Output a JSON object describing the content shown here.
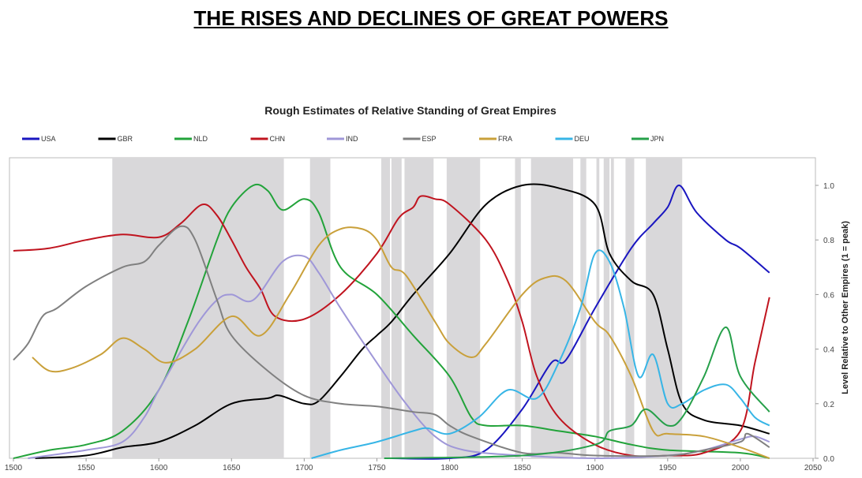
{
  "chart_data": {
    "type": "line",
    "title": "THE RISES AND DECLINES OF GREAT POWERS",
    "subtitle": "Rough Estimates of Relative Standing of Great Empires",
    "xlabel": "",
    "ylabel": "Level Relative to Other Empires (1 = peak)",
    "xlim": [
      1500,
      2050
    ],
    "ylim": [
      0,
      1.0
    ],
    "xticks": [
      "1500",
      "1550",
      "1600",
      "1650",
      "1700",
      "1750",
      "1800",
      "1850",
      "1900",
      "1950",
      "2000",
      "2050"
    ],
    "yticks": [
      "0.0",
      "0.2",
      "0.4",
      "0.6",
      "0.8",
      "1.0"
    ],
    "legend_position": "top",
    "shaded_periods": [
      [
        1568,
        1686
      ],
      [
        1704,
        1718
      ],
      [
        1753,
        1759
      ],
      [
        1760,
        1767
      ],
      [
        1769,
        1789
      ],
      [
        1798,
        1821
      ],
      [
        1845,
        1849
      ],
      [
        1856,
        1885
      ],
      [
        1890,
        1894
      ],
      [
        1901,
        1903
      ],
      [
        1906,
        1910
      ],
      [
        1911,
        1913
      ],
      [
        1921,
        1927
      ],
      [
        1935,
        1960
      ]
    ],
    "series": [
      {
        "name": "USA",
        "color": "#1a16c0",
        "points": [
          [
            1760,
            0
          ],
          [
            1800,
            0.0
          ],
          [
            1825,
            0.03
          ],
          [
            1850,
            0.18
          ],
          [
            1870,
            0.35
          ],
          [
            1880,
            0.36
          ],
          [
            1900,
            0.55
          ],
          [
            1925,
            0.77
          ],
          [
            1940,
            0.86
          ],
          [
            1950,
            0.92
          ],
          [
            1958,
            1.0
          ],
          [
            1970,
            0.9
          ],
          [
            1990,
            0.8
          ],
          [
            2000,
            0.77
          ],
          [
            2020,
            0.68
          ]
        ]
      },
      {
        "name": "GBR",
        "color": "#000000",
        "points": [
          [
            1515,
            0
          ],
          [
            1550,
            0.01
          ],
          [
            1575,
            0.04
          ],
          [
            1600,
            0.06
          ],
          [
            1625,
            0.12
          ],
          [
            1650,
            0.2
          ],
          [
            1675,
            0.22
          ],
          [
            1683,
            0.23
          ],
          [
            1700,
            0.2
          ],
          [
            1710,
            0.21
          ],
          [
            1725,
            0.3
          ],
          [
            1740,
            0.4
          ],
          [
            1750,
            0.45
          ],
          [
            1760,
            0.5
          ],
          [
            1775,
            0.6
          ],
          [
            1800,
            0.75
          ],
          [
            1825,
            0.93
          ],
          [
            1850,
            1.0
          ],
          [
            1875,
            0.99
          ],
          [
            1900,
            0.93
          ],
          [
            1910,
            0.75
          ],
          [
            1925,
            0.65
          ],
          [
            1940,
            0.6
          ],
          [
            1950,
            0.4
          ],
          [
            1960,
            0.2
          ],
          [
            1975,
            0.14
          ],
          [
            2000,
            0.12
          ],
          [
            2020,
            0.09
          ]
        ]
      },
      {
        "name": "NLD",
        "color": "#22a33a",
        "points": [
          [
            1500,
            0
          ],
          [
            1525,
            0.03
          ],
          [
            1550,
            0.05
          ],
          [
            1575,
            0.1
          ],
          [
            1600,
            0.25
          ],
          [
            1620,
            0.5
          ],
          [
            1640,
            0.8
          ],
          [
            1650,
            0.92
          ],
          [
            1665,
            1.0
          ],
          [
            1675,
            0.98
          ],
          [
            1685,
            0.91
          ],
          [
            1700,
            0.95
          ],
          [
            1710,
            0.9
          ],
          [
            1725,
            0.7
          ],
          [
            1750,
            0.6
          ],
          [
            1775,
            0.45
          ],
          [
            1800,
            0.3
          ],
          [
            1815,
            0.15
          ],
          [
            1825,
            0.12
          ],
          [
            1850,
            0.12
          ],
          [
            1875,
            0.1
          ],
          [
            1900,
            0.08
          ],
          [
            1925,
            0.05
          ],
          [
            1950,
            0.03
          ],
          [
            2000,
            0.02
          ],
          [
            2020,
            0.0
          ]
        ]
      },
      {
        "name": "CHN",
        "color": "#c0141f",
        "points": [
          [
            1500,
            0.76
          ],
          [
            1525,
            0.77
          ],
          [
            1550,
            0.8
          ],
          [
            1575,
            0.82
          ],
          [
            1600,
            0.81
          ],
          [
            1615,
            0.86
          ],
          [
            1630,
            0.93
          ],
          [
            1640,
            0.89
          ],
          [
            1650,
            0.8
          ],
          [
            1660,
            0.7
          ],
          [
            1670,
            0.62
          ],
          [
            1680,
            0.52
          ],
          [
            1700,
            0.51
          ],
          [
            1725,
            0.6
          ],
          [
            1750,
            0.75
          ],
          [
            1765,
            0.88
          ],
          [
            1775,
            0.92
          ],
          [
            1780,
            0.96
          ],
          [
            1790,
            0.95
          ],
          [
            1800,
            0.93
          ],
          [
            1825,
            0.8
          ],
          [
            1840,
            0.65
          ],
          [
            1850,
            0.5
          ],
          [
            1860,
            0.3
          ],
          [
            1875,
            0.15
          ],
          [
            1900,
            0.05
          ],
          [
            1925,
            0.01
          ],
          [
            1950,
            0.01
          ],
          [
            1975,
            0.02
          ],
          [
            2000,
            0.1
          ],
          [
            2010,
            0.35
          ],
          [
            2020,
            0.59
          ]
        ]
      },
      {
        "name": "IND",
        "color": "#9f97d8",
        "points": [
          [
            1510,
            0
          ],
          [
            1550,
            0.03
          ],
          [
            1575,
            0.06
          ],
          [
            1590,
            0.15
          ],
          [
            1600,
            0.25
          ],
          [
            1625,
            0.48
          ],
          [
            1640,
            0.58
          ],
          [
            1650,
            0.6
          ],
          [
            1665,
            0.58
          ],
          [
            1685,
            0.72
          ],
          [
            1700,
            0.74
          ],
          [
            1710,
            0.68
          ],
          [
            1725,
            0.55
          ],
          [
            1750,
            0.35
          ],
          [
            1770,
            0.2
          ],
          [
            1790,
            0.08
          ],
          [
            1810,
            0.03
          ],
          [
            1850,
            0.01
          ],
          [
            1900,
            0.0
          ],
          [
            1950,
            0.01
          ],
          [
            1975,
            0.03
          ],
          [
            2000,
            0.07
          ],
          [
            2010,
            0.08
          ],
          [
            2020,
            0.06
          ]
        ]
      },
      {
        "name": "ESP",
        "color": "#808080",
        "points": [
          [
            1500,
            0.36
          ],
          [
            1510,
            0.42
          ],
          [
            1520,
            0.52
          ],
          [
            1530,
            0.55
          ],
          [
            1550,
            0.63
          ],
          [
            1575,
            0.7
          ],
          [
            1590,
            0.72
          ],
          [
            1600,
            0.78
          ],
          [
            1615,
            0.85
          ],
          [
            1625,
            0.8
          ],
          [
            1640,
            0.58
          ],
          [
            1650,
            0.45
          ],
          [
            1675,
            0.32
          ],
          [
            1700,
            0.23
          ],
          [
            1725,
            0.2
          ],
          [
            1750,
            0.19
          ],
          [
            1775,
            0.17
          ],
          [
            1790,
            0.16
          ],
          [
            1800,
            0.12
          ],
          [
            1815,
            0.08
          ],
          [
            1850,
            0.02
          ],
          [
            1875,
            0.02
          ],
          [
            1900,
            0.01
          ],
          [
            1950,
            0.01
          ],
          [
            1975,
            0.03
          ],
          [
            2000,
            0.06
          ],
          [
            2005,
            0.09
          ],
          [
            2020,
            0.04
          ]
        ]
      },
      {
        "name": "FRA",
        "color": "#c9a03a",
        "points": [
          [
            1513,
            0.37
          ],
          [
            1525,
            0.32
          ],
          [
            1540,
            0.33
          ],
          [
            1560,
            0.38
          ],
          [
            1575,
            0.44
          ],
          [
            1590,
            0.4
          ],
          [
            1605,
            0.35
          ],
          [
            1625,
            0.4
          ],
          [
            1650,
            0.52
          ],
          [
            1670,
            0.45
          ],
          [
            1690,
            0.6
          ],
          [
            1710,
            0.78
          ],
          [
            1725,
            0.84
          ],
          [
            1740,
            0.84
          ],
          [
            1750,
            0.8
          ],
          [
            1760,
            0.7
          ],
          [
            1770,
            0.67
          ],
          [
            1790,
            0.5
          ],
          [
            1800,
            0.42
          ],
          [
            1815,
            0.37
          ],
          [
            1825,
            0.42
          ],
          [
            1850,
            0.6
          ],
          [
            1865,
            0.66
          ],
          [
            1880,
            0.65
          ],
          [
            1900,
            0.5
          ],
          [
            1910,
            0.45
          ],
          [
            1925,
            0.3
          ],
          [
            1940,
            0.1
          ],
          [
            1950,
            0.09
          ],
          [
            1975,
            0.08
          ],
          [
            2000,
            0.04
          ],
          [
            2020,
            0.0
          ]
        ]
      },
      {
        "name": "DEU",
        "color": "#37b5e6",
        "points": [
          [
            1705,
            0
          ],
          [
            1725,
            0.03
          ],
          [
            1750,
            0.06
          ],
          [
            1775,
            0.1
          ],
          [
            1785,
            0.11
          ],
          [
            1800,
            0.09
          ],
          [
            1820,
            0.15
          ],
          [
            1840,
            0.25
          ],
          [
            1860,
            0.22
          ],
          [
            1875,
            0.35
          ],
          [
            1890,
            0.55
          ],
          [
            1900,
            0.75
          ],
          [
            1910,
            0.72
          ],
          [
            1920,
            0.55
          ],
          [
            1930,
            0.3
          ],
          [
            1940,
            0.38
          ],
          [
            1950,
            0.2
          ],
          [
            1960,
            0.2
          ],
          [
            1975,
            0.25
          ],
          [
            1990,
            0.27
          ],
          [
            2000,
            0.22
          ],
          [
            2010,
            0.15
          ],
          [
            2020,
            0.12
          ]
        ]
      },
      {
        "name": "JPN",
        "color": "#26a04a",
        "points": [
          [
            1755,
            0
          ],
          [
            1850,
            0.01
          ],
          [
            1900,
            0.05
          ],
          [
            1910,
            0.1
          ],
          [
            1925,
            0.12
          ],
          [
            1935,
            0.18
          ],
          [
            1950,
            0.12
          ],
          [
            1960,
            0.15
          ],
          [
            1975,
            0.3
          ],
          [
            1990,
            0.48
          ],
          [
            2000,
            0.3
          ],
          [
            2020,
            0.17
          ]
        ]
      }
    ]
  }
}
